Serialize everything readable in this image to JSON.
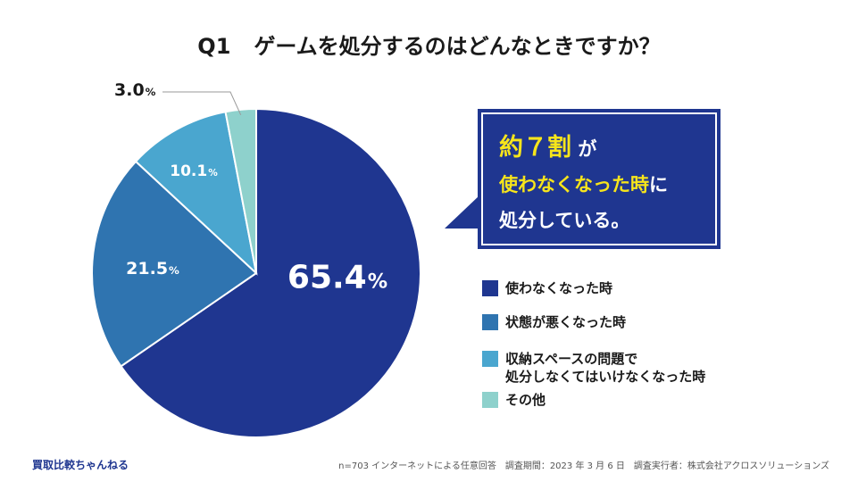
{
  "title": {
    "q": "Q1",
    "text": "ゲームを処分するのはどんなときですか？"
  },
  "callout": {
    "line1_highlight": "約７割",
    "line1_rest": "が",
    "line2_highlight": "使わなくなった時",
    "line2_rest": "に",
    "line3": "処分している。"
  },
  "chart_data": {
    "type": "pie",
    "title": "ゲームを処分するのはどんなときですか？",
    "start": "12 o'clock, clockwise",
    "unit": "%",
    "slices": [
      {
        "label": "使わなくなった時",
        "value": 65.4,
        "display": "65.4",
        "color": "#1f3690"
      },
      {
        "label": "状態が悪くなった時",
        "value": 21.5,
        "display": "21.5",
        "color": "#2f74b0"
      },
      {
        "label": "収納スペースの問題で処分しなくてはいけなくなった時",
        "value": 10.1,
        "display": "10.1",
        "color": "#4aa6cf"
      },
      {
        "label": "その他",
        "value": 3.0,
        "display": "3.0",
        "color": "#8ed1cc"
      }
    ]
  },
  "legend": [
    {
      "lines": [
        "使わなくなった時"
      ],
      "color": "#1f3690"
    },
    {
      "lines": [
        "状態が悪くなった時"
      ],
      "color": "#2f74b0"
    },
    {
      "lines": [
        "収納スペースの問題で",
        "処分しなくてはいけなくなった時"
      ],
      "color": "#4aa6cf"
    },
    {
      "lines": [
        "その他"
      ],
      "color": "#8ed1cc"
    }
  ],
  "footer": {
    "brand": "買取比較ちゃんねる",
    "source": "n=703 インターネットによる任意回答　調査期間：2023 年 3 月 6 日　調査実行者：株式会社アクロスソリューションズ"
  }
}
